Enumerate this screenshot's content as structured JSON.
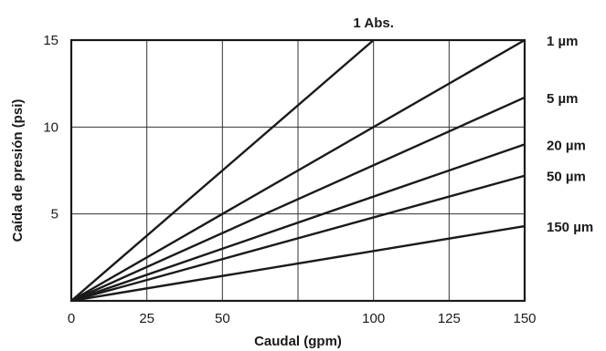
{
  "chart_data": {
    "type": "line",
    "xlabel": "Caudal (gpm)",
    "ylabel": "Caída de presión (psi)",
    "xlim": [
      0,
      150
    ],
    "ylim": [
      0,
      15
    ],
    "x_ticks": [
      "0",
      "25",
      "50",
      "100",
      "125",
      "150"
    ],
    "x_tick_values": [
      0,
      25,
      50,
      100,
      125,
      150
    ],
    "y_ticks": [
      "5",
      "10",
      "15"
    ],
    "y_tick_values": [
      5,
      10,
      15
    ],
    "x_gridlines": [
      25,
      50,
      75,
      100,
      125
    ],
    "y_gridlines": [
      5,
      10
    ],
    "grid": true,
    "line_color": "#1a1a1a",
    "series": [
      {
        "name": "1 Abs.",
        "x": [
          0,
          100
        ],
        "y": [
          0,
          15
        ]
      },
      {
        "name": "1 µm",
        "x": [
          0,
          150
        ],
        "y": [
          0,
          15
        ]
      },
      {
        "name": "5 µm",
        "x": [
          0,
          150
        ],
        "y": [
          0,
          11.7
        ]
      },
      {
        "name": "20 µm",
        "x": [
          0,
          150
        ],
        "y": [
          0,
          9
        ]
      },
      {
        "name": "50 µm",
        "x": [
          0,
          150
        ],
        "y": [
          0,
          7.2
        ]
      },
      {
        "name": "150 µm",
        "x": [
          0,
          150
        ],
        "y": [
          0,
          4.3
        ]
      }
    ]
  }
}
